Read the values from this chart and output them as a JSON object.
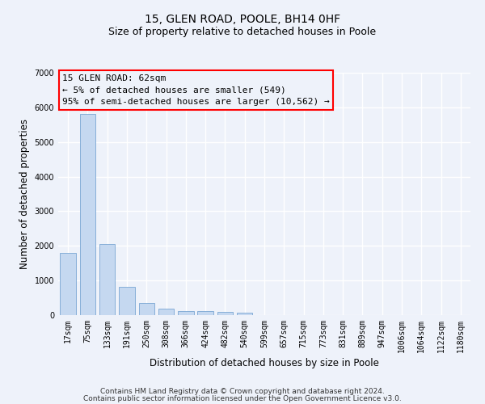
{
  "title_line1": "15, GLEN ROAD, POOLE, BH14 0HF",
  "title_line2": "Size of property relative to detached houses in Poole",
  "xlabel": "Distribution of detached houses by size in Poole",
  "ylabel": "Number of detached properties",
  "categories": [
    "17sqm",
    "75sqm",
    "133sqm",
    "191sqm",
    "250sqm",
    "308sqm",
    "366sqm",
    "424sqm",
    "482sqm",
    "540sqm",
    "599sqm",
    "657sqm",
    "715sqm",
    "773sqm",
    "831sqm",
    "889sqm",
    "947sqm",
    "1006sqm",
    "1064sqm",
    "1122sqm",
    "1180sqm"
  ],
  "values": [
    1800,
    5800,
    2050,
    820,
    340,
    190,
    120,
    110,
    100,
    80,
    0,
    0,
    0,
    0,
    0,
    0,
    0,
    0,
    0,
    0,
    0
  ],
  "bar_color": "#c5d8f0",
  "bar_edge_color": "#6699cc",
  "ylim": [
    0,
    7000
  ],
  "yticks": [
    0,
    1000,
    2000,
    3000,
    4000,
    5000,
    6000,
    7000
  ],
  "annotation_line1": "15 GLEN ROAD: 62sqm",
  "annotation_line2": "← 5% of detached houses are smaller (549)",
  "annotation_line3": "95% of semi-detached houses are larger (10,562) →",
  "background_color": "#eef2fa",
  "plot_background_color": "#eef2fa",
  "grid_color": "#ffffff",
  "title_fontsize": 10,
  "subtitle_fontsize": 9,
  "axis_label_fontsize": 8.5,
  "tick_fontsize": 7,
  "annotation_fontsize": 8,
  "footer_fontsize": 6.5,
  "footer_line1": "Contains HM Land Registry data © Crown copyright and database right 2024.",
  "footer_line2": "Contains public sector information licensed under the Open Government Licence v3.0."
}
